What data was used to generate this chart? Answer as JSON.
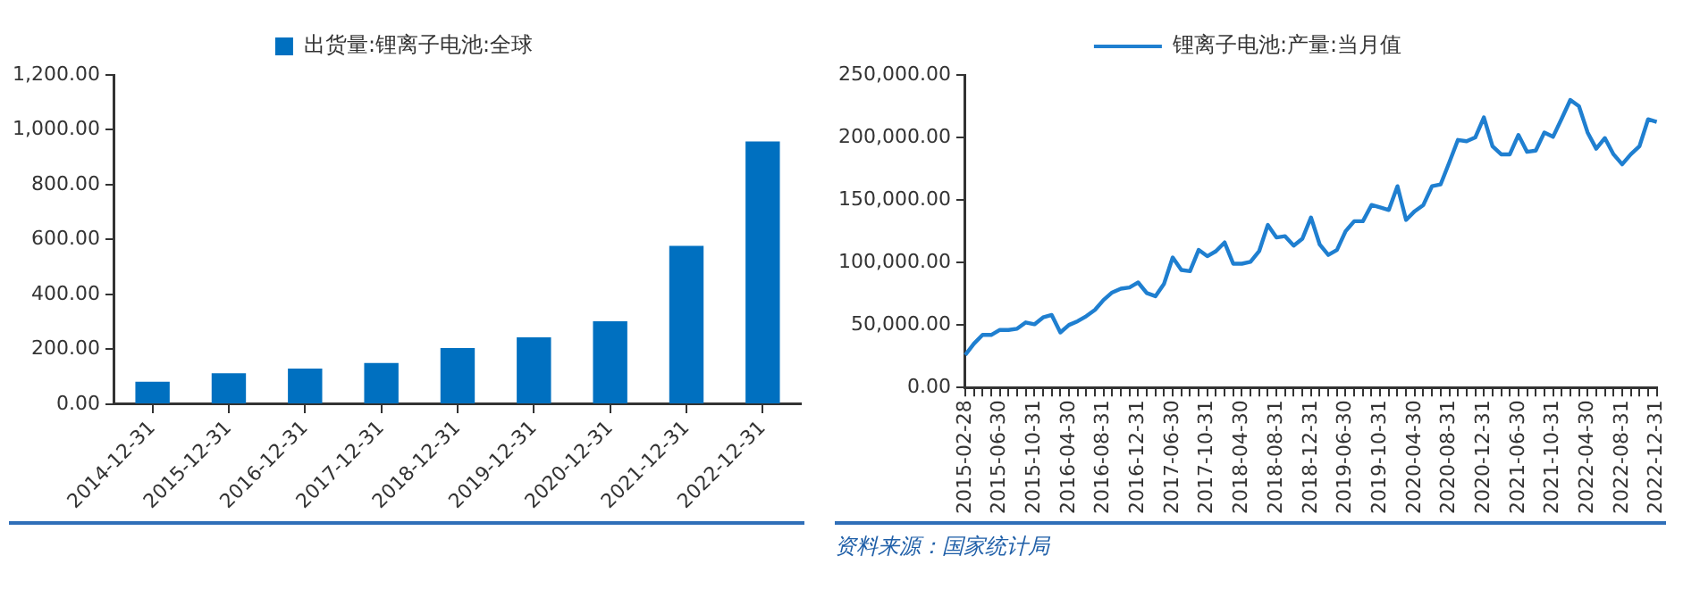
{
  "chart_data": [
    {
      "type": "bar",
      "categories": [
        "2014-12-31",
        "2015-12-31",
        "2016-12-31",
        "2017-12-31",
        "2018-12-31",
        "2019-12-31",
        "2020-12-31",
        "2021-12-31",
        "2022-12-31"
      ],
      "series": [
        {
          "name": "出货量:锂离子电池:全球",
          "color": "#0070c0",
          "values": [
            82,
            113,
            130,
            150,
            205,
            244,
            302,
            577,
            958
          ]
        }
      ],
      "ylim": [
        0,
        1200
      ],
      "yticks": [
        {
          "value": 0,
          "label": "0.00"
        },
        {
          "value": 200,
          "label": "200.00"
        },
        {
          "value": 400,
          "label": "400.00"
        },
        {
          "value": 600,
          "label": "600.00"
        },
        {
          "value": 800,
          "label": "800.00"
        },
        {
          "value": 1000,
          "label": "1,000.00"
        },
        {
          "value": 1200,
          "label": "1,200.00"
        }
      ],
      "grid": false,
      "legend": "top"
    },
    {
      "type": "line",
      "categories": [
        "2015-02-28",
        null,
        null,
        null,
        "2015-06-30",
        null,
        null,
        null,
        "2015-10-31",
        null,
        null,
        null,
        "2016-04-30",
        null,
        null,
        null,
        "2016-08-31",
        null,
        null,
        null,
        "2016-12-31",
        null,
        null,
        null,
        "2017-06-30",
        null,
        null,
        null,
        "2017-10-31",
        null,
        null,
        null,
        "2018-04-30",
        null,
        null,
        null,
        "2018-08-31",
        null,
        null,
        null,
        "2018-12-31",
        null,
        null,
        null,
        "2019-06-30",
        null,
        null,
        null,
        "2019-10-31",
        null,
        null,
        null,
        "2020-04-30",
        null,
        null,
        null,
        "2020-08-31",
        null,
        null,
        null,
        "2020-12-31",
        null,
        null,
        null,
        "2021-06-30",
        null,
        null,
        null,
        "2021-10-31",
        null,
        null,
        null,
        "2022-04-30",
        null,
        null,
        null,
        "2022-08-31",
        null,
        null,
        null,
        "2022-12-31"
      ],
      "series": [
        {
          "name": "锂离子电池:产量:当月值",
          "color": "#1f7fd0",
          "values": [
            26000,
            35000,
            42000,
            42000,
            46000,
            46000,
            47000,
            52000,
            50500,
            56000,
            58000,
            44000,
            50000,
            53000,
            57000,
            62000,
            70000,
            76000,
            79000,
            80000,
            84000,
            75500,
            73000,
            83000,
            104000,
            94000,
            93000,
            110000,
            105000,
            109000,
            116000,
            99000,
            99000,
            100500,
            109000,
            130000,
            120000,
            121000,
            113500,
            119000,
            136000,
            114500,
            106000,
            110000,
            125000,
            133000,
            133000,
            146000,
            144000,
            142000,
            161000,
            134000,
            141000,
            146000,
            161000,
            162500,
            180000,
            198000,
            197000,
            200000,
            216000,
            193000,
            186500,
            186500,
            202000,
            188500,
            189500,
            204000,
            200500,
            215000,
            230000,
            225000,
            204000,
            191000,
            199500,
            186500,
            178500,
            186500,
            193000,
            214500,
            212500
          ]
        }
      ],
      "ylim": [
        0,
        250000
      ],
      "yticks": [
        {
          "value": 0,
          "label": "0.00"
        },
        {
          "value": 50000,
          "label": "50,000.00"
        },
        {
          "value": 100000,
          "label": "100,000.00"
        },
        {
          "value": 150000,
          "label": "150,000.00"
        },
        {
          "value": 200000,
          "label": "200,000.00"
        },
        {
          "value": 250000,
          "label": "250,000.00"
        }
      ],
      "grid": false,
      "legend": "top",
      "marker": "none",
      "line_style": "solid",
      "annotations": [
        "资料来源：国家统计局"
      ]
    }
  ]
}
